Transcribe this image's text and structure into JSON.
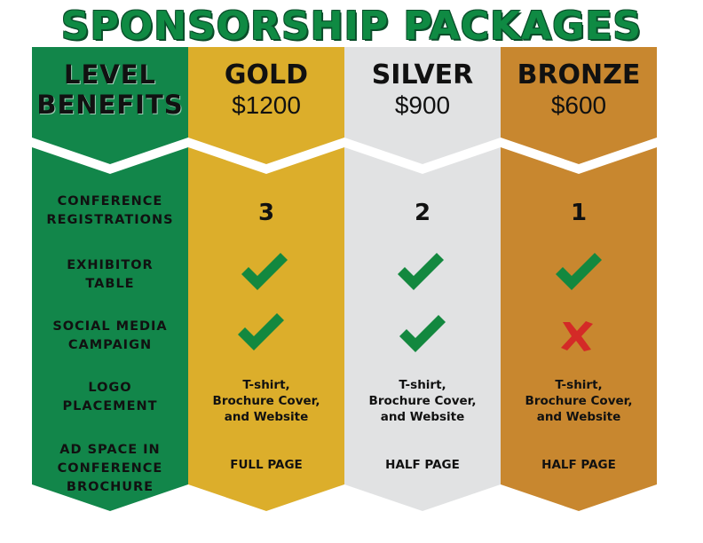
{
  "title": "SPONSORSHIP PACKAGES",
  "level_column": {
    "header_line1": "LEVEL",
    "header_line2": "BENEFITS",
    "benefits": [
      {
        "line1": "CONFERENCE",
        "line2": "REGISTRATIONS"
      },
      {
        "line1": "EXHIBITOR",
        "line2": "TABLE"
      },
      {
        "line1": "SOCIAL MEDIA",
        "line2": "CAMPAIGN"
      },
      {
        "line1": "LOGO",
        "line2": "PLACEMENT"
      },
      {
        "line1": "AD SPACE IN",
        "line2": "CONFERENCE",
        "line3": "BROCHURE"
      }
    ],
    "color": "#12864a"
  },
  "packages": [
    {
      "name": "GOLD",
      "price": "$1200",
      "color": "#dcae2b",
      "registrations": "3",
      "exhibitor_table": "check-icon",
      "social_media": "check-icon",
      "logo_line1": "T-shirt,",
      "logo_line2": "Brochure Cover,",
      "logo_line3": "and Website",
      "ad_space": "FULL PAGE"
    },
    {
      "name": "SILVER",
      "price": "$900",
      "color": "#e1e2e3",
      "registrations": "2",
      "exhibitor_table": "check-icon",
      "social_media": "check-icon",
      "logo_line1": "T-shirt,",
      "logo_line2": "Brochure Cover,",
      "logo_line3": "and Website",
      "ad_space": "HALF PAGE"
    },
    {
      "name": "BRONZE",
      "price": "$600",
      "color": "#c8872f",
      "registrations": "1",
      "exhibitor_table": "check-icon",
      "social_media": "cross-icon",
      "logo_line1": "T-shirt,",
      "logo_line2": "Brochure Cover,",
      "logo_line3": "and Website",
      "ad_space": "HALF PAGE"
    }
  ],
  "icon_colors": {
    "check": "#13883f",
    "cross": "#d42a27"
  }
}
